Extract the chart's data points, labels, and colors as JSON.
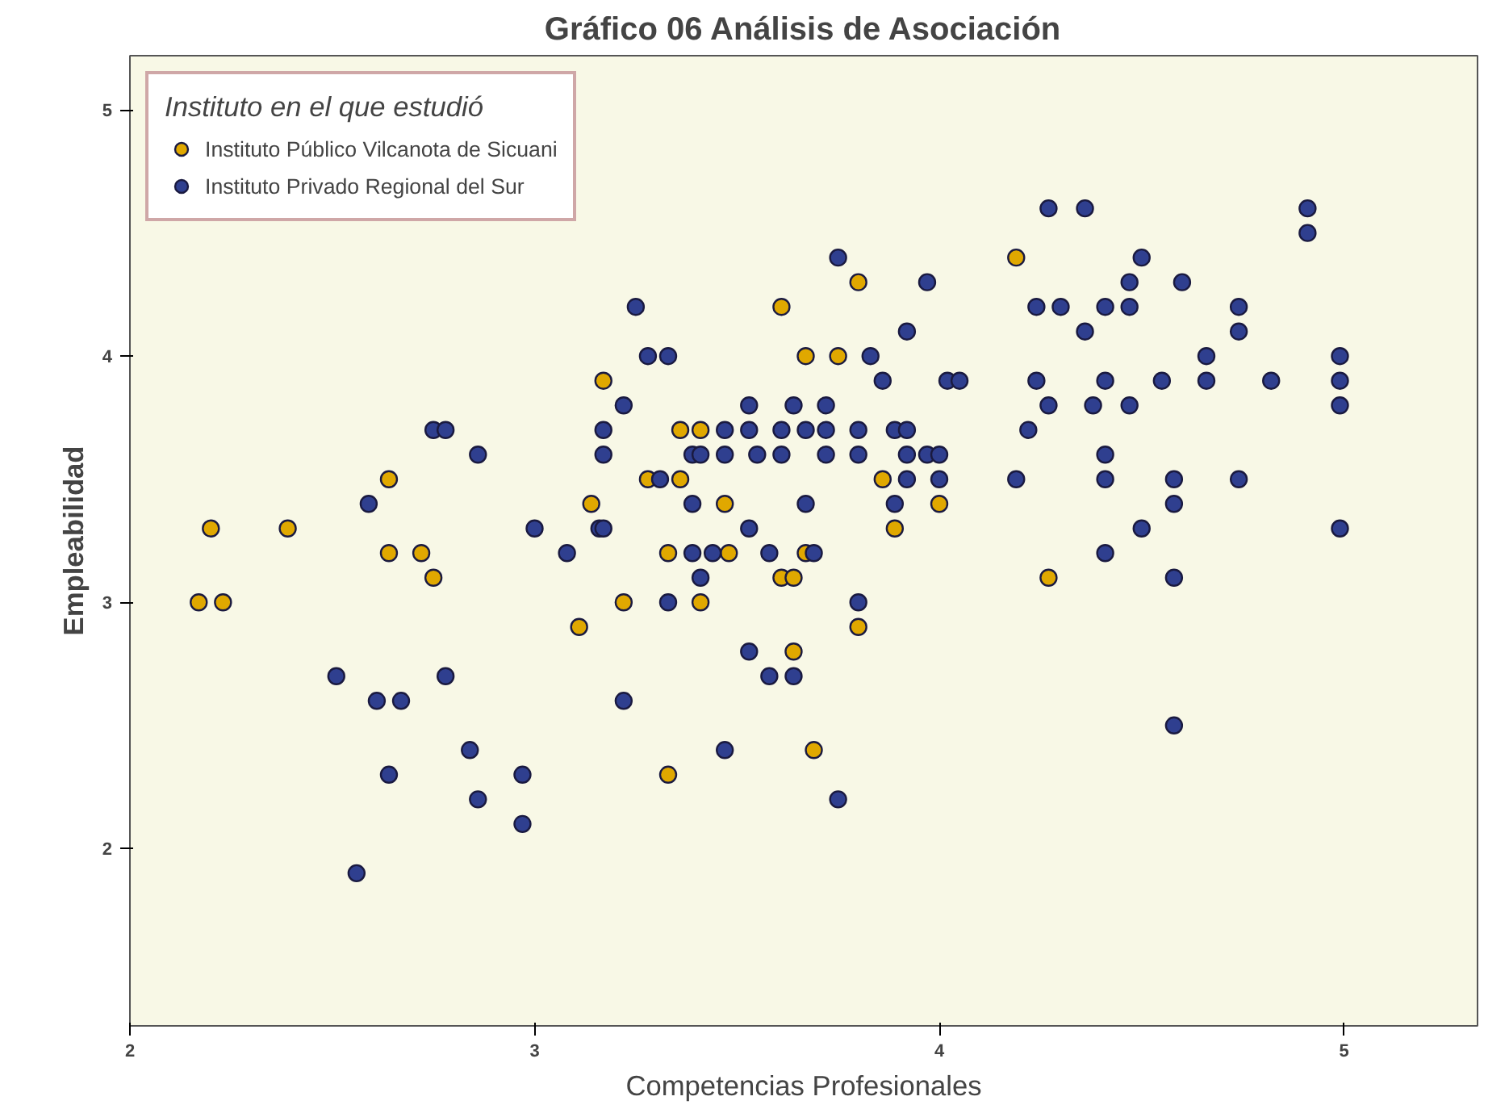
{
  "chart_data": {
    "type": "scatter",
    "title": "Gráfico 06 Análisis de Asociación",
    "xlabel": "Competencias Profesionales",
    "ylabel": "Empleabilidad",
    "legend_title": "Instituto en el que estudió",
    "legend": "top left",
    "grid": false,
    "marker": "circle",
    "xlim": [
      2,
      5.33
    ],
    "ylim": [
      1.28,
      5.22
    ],
    "xticks": [
      2,
      3,
      4,
      5
    ],
    "yticks": [
      2,
      3,
      4,
      5
    ],
    "series": [
      {
        "name": "Instituto Público Vilcanota de Sicuani",
        "color": "#e0a800",
        "x": [
          2.17,
          2.23,
          2.2,
          2.39,
          2.64,
          2.64,
          2.72,
          2.75,
          3.11,
          3.8,
          3.61,
          3.17,
          3.67,
          3.75,
          3.36,
          3.41,
          3.28,
          3.36,
          3.14,
          3.47,
          3.86,
          4.0,
          3.89,
          3.33,
          3.48,
          3.67,
          3.61,
          3.64,
          3.22,
          3.41,
          3.8,
          3.64,
          3.69,
          3.33,
          4.19,
          4.27
        ],
        "values": [
          3.0,
          3.0,
          3.3,
          3.3,
          3.5,
          3.2,
          3.2,
          3.1,
          2.9,
          4.3,
          4.2,
          3.9,
          4.0,
          4.0,
          3.7,
          3.7,
          3.5,
          3.5,
          3.4,
          3.4,
          3.5,
          3.4,
          3.3,
          3.2,
          3.2,
          3.2,
          3.1,
          3.1,
          3.0,
          3.0,
          2.9,
          2.8,
          2.4,
          2.3,
          4.4,
          3.1
        ]
      },
      {
        "name": "Instituto Privado Regional del Sur",
        "color": "#2f3f8f",
        "x": [
          2.75,
          2.78,
          2.86,
          2.59,
          3.0,
          3.08,
          3.16,
          2.51,
          2.61,
          2.67,
          2.78,
          2.84,
          2.64,
          2.97,
          2.86,
          2.97,
          2.56,
          3.75,
          3.97,
          3.25,
          3.92,
          3.28,
          3.33,
          3.83,
          3.86,
          4.02,
          4.05,
          3.22,
          3.53,
          3.64,
          3.72,
          3.17,
          3.47,
          3.53,
          3.61,
          3.67,
          3.72,
          3.8,
          3.89,
          3.92,
          3.17,
          3.39,
          3.41,
          3.47,
          3.55,
          3.61,
          3.72,
          3.8,
          3.92,
          3.97,
          4.0,
          3.31,
          3.92,
          4.0,
          3.39,
          3.67,
          3.89,
          3.17,
          3.53,
          3.39,
          3.44,
          3.58,
          3.69,
          3.41,
          3.33,
          3.8,
          3.53,
          3.58,
          3.64,
          3.22,
          3.47,
          3.75,
          4.27,
          4.36,
          4.91,
          4.91,
          4.5,
          4.47,
          4.6,
          4.24,
          4.3,
          4.41,
          4.47,
          4.74,
          4.36,
          4.74,
          4.66,
          4.99,
          4.24,
          4.41,
          4.55,
          4.66,
          4.82,
          4.99,
          4.27,
          4.38,
          4.47,
          4.99,
          4.22,
          4.41,
          4.19,
          4.41,
          4.58,
          4.74,
          4.58,
          4.5,
          4.99,
          4.41,
          4.58,
          4.58
        ],
        "values": [
          3.7,
          3.7,
          3.6,
          3.4,
          3.3,
          3.2,
          3.3,
          2.7,
          2.6,
          2.6,
          2.7,
          2.4,
          2.3,
          2.3,
          2.2,
          2.1,
          1.9,
          4.4,
          4.3,
          4.2,
          4.1,
          4.0,
          4.0,
          4.0,
          3.9,
          3.9,
          3.9,
          3.8,
          3.8,
          3.8,
          3.8,
          3.7,
          3.7,
          3.7,
          3.7,
          3.7,
          3.7,
          3.7,
          3.7,
          3.7,
          3.6,
          3.6,
          3.6,
          3.6,
          3.6,
          3.6,
          3.6,
          3.6,
          3.6,
          3.6,
          3.6,
          3.5,
          3.5,
          3.5,
          3.4,
          3.4,
          3.4,
          3.3,
          3.3,
          3.2,
          3.2,
          3.2,
          3.2,
          3.1,
          3.0,
          3.0,
          2.8,
          2.7,
          2.7,
          2.6,
          2.4,
          2.2,
          4.6,
          4.6,
          4.6,
          4.5,
          4.4,
          4.3,
          4.3,
          4.2,
          4.2,
          4.2,
          4.2,
          4.2,
          4.1,
          4.1,
          4.0,
          4.0,
          3.9,
          3.9,
          3.9,
          3.9,
          3.9,
          3.9,
          3.8,
          3.8,
          3.8,
          3.8,
          3.7,
          3.6,
          3.5,
          3.5,
          3.5,
          3.5,
          3.4,
          3.3,
          3.3,
          3.2,
          3.1,
          2.5
        ]
      }
    ]
  }
}
